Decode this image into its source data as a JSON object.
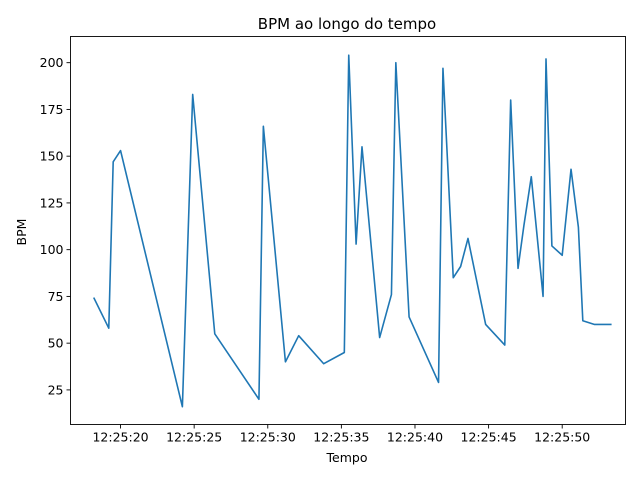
{
  "chart_data": {
    "type": "line",
    "title": "BPM ao longo do tempo",
    "xlabel": "Tempo",
    "ylabel": "BPM",
    "grid": false,
    "legend": "none",
    "line_color": "#1f77b4",
    "xlim": [
      "12:25:16.6",
      "12:25:54.3"
    ],
    "ylim": [
      6.5,
      214
    ],
    "xticks": [
      "12:25:20",
      "12:25:25",
      "12:25:30",
      "12:25:35",
      "12:25:40",
      "12:25:45",
      "12:25:50"
    ],
    "yticks": [
      25,
      50,
      75,
      100,
      125,
      150,
      175,
      200
    ],
    "series": [
      {
        "x": [
          "12:25:18.2",
          "12:25:19.2",
          "12:25:19.5",
          "12:25:20.0",
          "12:25:24.2",
          "12:25:24.9",
          "12:25:26.4",
          "12:25:29.4",
          "12:25:29.7",
          "12:25:31.2",
          "12:25:32.1",
          "12:25:33.8",
          "12:25:35.2",
          "12:25:35.5",
          "12:25:36.0",
          "12:25:36.4",
          "12:25:37.6",
          "12:25:38.4",
          "12:25:38.7",
          "12:25:39.6",
          "12:25:41.6",
          "12:25:41.9",
          "12:25:42.6",
          "12:25:43.1",
          "12:25:43.6",
          "12:25:44.8",
          "12:25:46.1",
          "12:25:46.5",
          "12:25:47.0",
          "12:25:47.4",
          "12:25:47.9",
          "12:25:48.7",
          "12:25:48.9",
          "12:25:49.3",
          "12:25:50.0",
          "12:25:50.6",
          "12:25:51.1",
          "12:25:51.4",
          "12:25:52.2",
          "12:25:53.3"
        ],
        "values": [
          74,
          58,
          147,
          153,
          16,
          183,
          55,
          20,
          166,
          40,
          54,
          39,
          45,
          204,
          103,
          155,
          53,
          76,
          200,
          64,
          29,
          197,
          85,
          91,
          106,
          60,
          49,
          180,
          90,
          113,
          139,
          75,
          202,
          102,
          97,
          143,
          112,
          62,
          60,
          60
        ]
      }
    ]
  }
}
